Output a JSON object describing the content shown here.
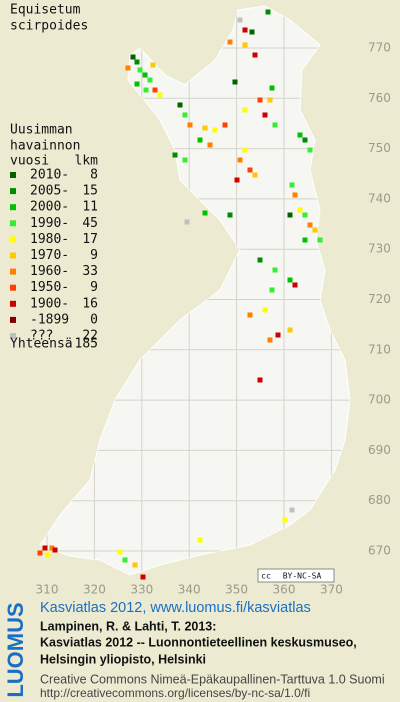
{
  "title": [
    "Equisetum",
    "scirpoides"
  ],
  "legend": {
    "heading": [
      "Uusimman",
      "havainnon",
      "vuosi"
    ],
    "count_heading": "lkm",
    "rows": [
      {
        "label": "2010-",
        "count": 8,
        "color": "#006400"
      },
      {
        "label": "2005-",
        "count": 15,
        "color": "#008c00"
      },
      {
        "label": "2000-",
        "count": 11,
        "color": "#00c000"
      },
      {
        "label": "1990-",
        "count": 45,
        "color": "#33ee33"
      },
      {
        "label": "1980-",
        "count": 17,
        "color": "#ffff00"
      },
      {
        "label": "1970-",
        "count": 9,
        "color": "#ffc800"
      },
      {
        "label": "1960-",
        "count": 33,
        "color": "#ff8000"
      },
      {
        "label": "1950-",
        "count": 9,
        "color": "#ff4000"
      },
      {
        "label": "1900-",
        "count": 16,
        "color": "#cc0000"
      },
      {
        "label": "-1899",
        "count": 0,
        "color": "#800000"
      },
      {
        "label": "???",
        "count": 22,
        "color": "#c0c0c0"
      }
    ],
    "total_label": "Yhteensä",
    "total": 185
  },
  "axes": {
    "x_labels": [
      310,
      320,
      330,
      340,
      350,
      360,
      370
    ],
    "y_labels": [
      670,
      680,
      690,
      700,
      710,
      720,
      730,
      740,
      750,
      760,
      770
    ]
  },
  "badge": [
    "cc",
    "BY-NC-SA"
  ],
  "footer": {
    "logo": "LUOMUS",
    "link": "Kasviatlas 2012, www.luomus.fi/kasviatlas",
    "citation": [
      "Lampinen, R. & Lahti, T. 2013:",
      "Kasviatlas 2012 -- Luonnontieteellinen keskusmuseo,",
      "Helsingin yliopisto, Helsinki"
    ],
    "license": [
      "Creative Commons Nimeä-Epäkaupallinen-Tarttuva 1.0 Suomi",
      "http://creativecommons.org/licenses/by-nc-sa/1.0/fi"
    ]
  }
}
